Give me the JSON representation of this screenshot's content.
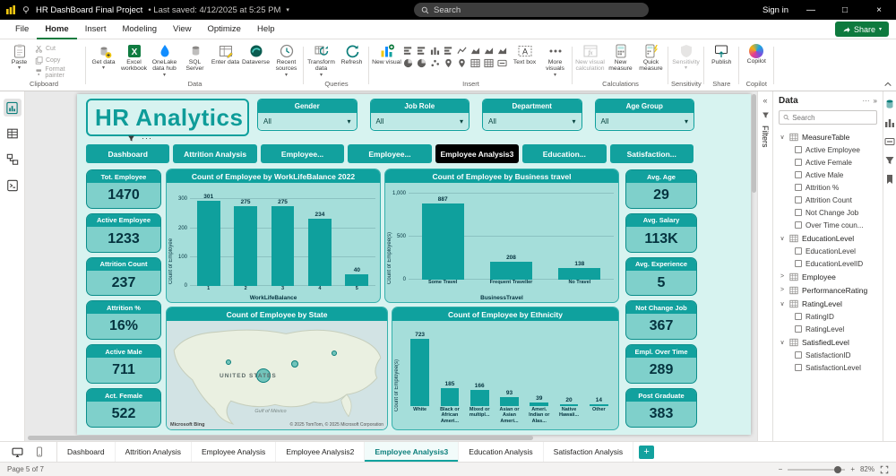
{
  "glyphs": {
    "caret_down": "▾",
    "collapse_left": "«",
    "collapse_right": "»",
    "ellipsis": "···",
    "chevron_expanded": "∨",
    "chevron_collapsed": ">",
    "minimize": "—",
    "maximize": "□",
    "close": "×",
    "minus": "−",
    "plus": "+"
  },
  "colors": {
    "teal": "#12A19E",
    "teal_dark": "#0B7E7B",
    "page_bg": "#D7F3F0",
    "panel": "#A5DEDA",
    "ink": "#05333F",
    "accent_green": "#0E7A3E",
    "active_tab": "#000000"
  },
  "titlebar": {
    "app_title": "HR DashBoard Final Project",
    "saved": "•  Last saved: 4/12/2025 at 5:25 PM",
    "search_placeholder": "Search",
    "sign_in": "Sign in"
  },
  "menubar": {
    "items": [
      "File",
      "Home",
      "Insert",
      "Modeling",
      "View",
      "Optimize",
      "Help"
    ],
    "active_index": 1,
    "share_label": "Share"
  },
  "ribbon": {
    "groups_labels": [
      "Clipboard",
      "Data",
      "Queries",
      "Insert",
      "Calculations",
      "Sensitivity",
      "Share",
      "Copilot"
    ],
    "clipboard": {
      "paste": "Paste",
      "cut": "Cut",
      "copy": "Copy",
      "format_painter": "Format painter"
    },
    "data": {
      "items": [
        {
          "label": "Get data",
          "icon": "get-data",
          "caret": true
        },
        {
          "label": "Excel workbook",
          "icon": "excel",
          "caret": false
        },
        {
          "label": "OneLake data hub",
          "icon": "onelake",
          "caret": true
        },
        {
          "label": "SQL Server",
          "icon": "sql",
          "caret": false
        },
        {
          "label": "Enter data",
          "icon": "enter-data",
          "caret": false
        },
        {
          "label": "Dataverse",
          "icon": "dataverse",
          "caret": false
        },
        {
          "label": "Recent sources",
          "icon": "recent",
          "caret": true
        }
      ]
    },
    "queries": {
      "items": [
        {
          "label": "Transform data",
          "icon": "transform",
          "caret": true
        },
        {
          "label": "Refresh",
          "icon": "refresh",
          "caret": false
        }
      ]
    },
    "insert": {
      "new_visual": "New visual",
      "text_box": "Text box",
      "more_visuals": "More visuals",
      "visual_icons": [
        "stacked-bar",
        "clustered-bar",
        "stacked-column",
        "100-stacked-bar",
        "line",
        "area",
        "stacked-area",
        "ribbon-chart",
        "pie",
        "donut",
        "scatter",
        "map",
        "filled-map",
        "table",
        "matrix",
        "card"
      ]
    },
    "calculations": {
      "items": [
        {
          "label": "New visual calculation",
          "icon": "visual-calc",
          "caret": false,
          "disabled": true
        },
        {
          "label": "New measure",
          "icon": "measure",
          "caret": false,
          "disabled": false
        },
        {
          "label": "Quick measure",
          "icon": "quick-measure",
          "caret": false,
          "disabled": false
        }
      ]
    },
    "sensitivity": {
      "label": "Sensitivity"
    },
    "share": {
      "publish": "Publish"
    },
    "copilot": {
      "label": "Copilot"
    }
  },
  "report": {
    "title": "HR Analytics",
    "slicers": [
      {
        "label": "Gender",
        "value": "All"
      },
      {
        "label": "Job Role",
        "value": "All"
      },
      {
        "label": "Department",
        "value": "All"
      },
      {
        "label": "Age Group",
        "value": "All"
      }
    ],
    "nav_tabs": [
      "Dashboard",
      "Attrition Analysis",
      "Employee...",
      "Employee...",
      "Employee Analysis3",
      "Education...",
      "Satisfaction..."
    ],
    "nav_active_index": 4,
    "kpis_left": [
      {
        "label": "Tot. Employee",
        "value": "1470"
      },
      {
        "label": "Active Employee",
        "value": "1233"
      },
      {
        "label": "Attrition Count",
        "value": "237"
      },
      {
        "label": "Attrition %",
        "value": "16%"
      },
      {
        "label": "Active Male",
        "value": "711"
      },
      {
        "label": "Act. Female",
        "value": "522"
      }
    ],
    "kpis_right": [
      {
        "label": "Avg. Age",
        "value": "29"
      },
      {
        "label": "Avg. Salary",
        "value": "113K"
      },
      {
        "label": "Avg. Experience",
        "value": "5"
      },
      {
        "label": "Not Change Job",
        "value": "367"
      },
      {
        "label": "Empl. Over Time",
        "value": "289"
      },
      {
        "label": "Post Graduate",
        "value": "383"
      }
    ]
  },
  "chart_data": [
    {
      "type": "bar",
      "title": "Count of Employee by WorkLifeBalance 2022",
      "categories": [
        "1",
        "2",
        "3",
        "4",
        "5"
      ],
      "values": [
        301,
        275,
        275,
        234,
        40
      ],
      "xlabel": "WorkLifeBalance",
      "ylabel": "Count of Employee",
      "ylim": [
        0,
        320
      ],
      "yticks": [
        0,
        100,
        200,
        300
      ],
      "grid": true,
      "tick_area": 18
    },
    {
      "type": "bar",
      "title": "Count of Employee by Business travel",
      "categories": [
        "Some Travel",
        "Frequent Traveller",
        "No Travel"
      ],
      "values": [
        887,
        208,
        138
      ],
      "xlabel": "BusinessTravel",
      "ylabel": "Count of Employee(s)",
      "ylim": [
        0,
        1000
      ],
      "yticks": [
        0,
        500,
        1000
      ],
      "grid": true,
      "tick_area": 25
    },
    {
      "type": "map",
      "title": "Count of Employee by State",
      "label": "UNITED STATES",
      "sublabel": "Gulf of México",
      "provider": "Microsoft Bing",
      "attribution": "© 2025 TomTom, © 2025 Microsoft Corporation",
      "bubbles": [
        {
          "x": 44,
          "y": 50,
          "r": 8
        },
        {
          "x": 58,
          "y": 40,
          "r": 4
        },
        {
          "x": 76,
          "y": 30,
          "r": 3
        },
        {
          "x": 28,
          "y": 38,
          "r": 3
        }
      ]
    },
    {
      "type": "bar",
      "title": "Count of Employee by Ethnicity",
      "categories": [
        "White",
        "Black or African Ameri...",
        "Mixed or multipl...",
        "Asian or Asian Ameri...",
        "Ameri. Indian or Alas...",
        "Native Hawaii...",
        "Other"
      ],
      "values": [
        723,
        185,
        166,
        93,
        39,
        20,
        14
      ],
      "xlabel": "",
      "ylabel": "Count of Employee(s)",
      "ylim": [
        0,
        760
      ],
      "yticks": [],
      "grid": false,
      "tick_area": 26
    }
  ],
  "filters_pane": {
    "title": "Filters"
  },
  "data_pane": {
    "title": "Data",
    "search_placeholder": "Search",
    "tables": [
      {
        "name": "MeasureTable",
        "expanded": true,
        "fields": [
          "Active Employee",
          "Active Female",
          "Active Male",
          "Attrition %",
          "Attrition Count",
          "Not Change Job",
          "Over Time coun..."
        ]
      },
      {
        "name": "EducationLevel",
        "expanded": true,
        "fields": [
          "EducationLevel",
          "EducationLevelID"
        ]
      },
      {
        "name": "Employee",
        "expanded": false,
        "fields": []
      },
      {
        "name": "PerformanceRating",
        "expanded": false,
        "fields": []
      },
      {
        "name": "RatingLevel",
        "expanded": true,
        "fields": [
          "RatingID",
          "RatingLevel"
        ]
      },
      {
        "name": "SatisfiedLevel",
        "expanded": true,
        "fields": [
          "SatisfactionID",
          "SatisfactionLevel"
        ]
      }
    ]
  },
  "page_tabs": {
    "tabs": [
      "Dashboard",
      "Attrition Analysis",
      "Employee Analysis",
      "Employee Analysis2",
      "Employee Analysis3",
      "Education Analysis",
      "Satisfaction Analysis"
    ],
    "active_index": 4,
    "add_label": "+"
  },
  "statusbar": {
    "page_info": "Page 5 of 7",
    "zoom": "82%"
  }
}
